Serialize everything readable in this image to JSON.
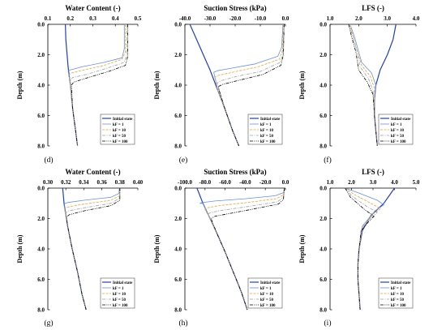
{
  "colors": {
    "initial": "#1f3fbf",
    "k1": "#6a8fd8",
    "k10": "#e8a33a",
    "k50": "#a0a0a0",
    "k100": "#000000"
  },
  "line_styles": {
    "initial": "solid",
    "k1": "solid",
    "k10": "dash",
    "k50": "dash-dot",
    "k100": "dash-dot-dot"
  },
  "chart_data": [
    {
      "id": "d",
      "type": "line",
      "panel_label": "(d)",
      "title": "Water Content (-)",
      "xlabel": "Water Content (-)",
      "ylabel": "Depth (m)",
      "xlim": [
        0.1,
        0.5
      ],
      "xticks": [
        "0.1",
        "0.2",
        "0.3",
        "0.4",
        "0.5"
      ],
      "ylim": [
        0,
        8
      ],
      "yticks": [
        "0.0",
        "2.0",
        "4.0",
        "6.0",
        "8.0"
      ],
      "y_inverted": true,
      "series": [
        {
          "name": "Initial state",
          "style": "initial",
          "x": [
            0.178,
            0.18,
            0.19,
            0.2,
            0.21,
            0.225,
            0.232
          ],
          "y": [
            0,
            1,
            2.8,
            4,
            5.5,
            7.2,
            8
          ]
        },
        {
          "name": "kF = 1",
          "style": "k1",
          "x": [
            0.44,
            0.44,
            0.43,
            0.35,
            0.25,
            0.2,
            0.19,
            0.2,
            0.21,
            0.225,
            0.232
          ],
          "y": [
            0,
            1.6,
            2.2,
            2.5,
            2.8,
            3,
            3.05,
            4,
            5.5,
            7.2,
            8
          ]
        },
        {
          "name": "kF = 10",
          "style": "k10",
          "x": [
            0.445,
            0.445,
            0.43,
            0.35,
            0.26,
            0.205,
            0.195,
            0.2,
            0.21,
            0.225,
            0.232
          ],
          "y": [
            0,
            1.8,
            2.3,
            2.7,
            3,
            3.2,
            3.3,
            4,
            5.5,
            7.2,
            8
          ]
        },
        {
          "name": "kF = 50",
          "style": "k50",
          "x": [
            0.45,
            0.45,
            0.44,
            0.36,
            0.27,
            0.21,
            0.2,
            0.21,
            0.225,
            0.232
          ],
          "y": [
            0,
            2,
            2.5,
            2.9,
            3.3,
            3.5,
            3.7,
            5.5,
            7.2,
            8
          ]
        },
        {
          "name": "kF = 100",
          "style": "k100",
          "x": [
            0.455,
            0.455,
            0.445,
            0.37,
            0.28,
            0.215,
            0.205,
            0.21,
            0.225,
            0.232
          ],
          "y": [
            0,
            2.1,
            2.7,
            3.1,
            3.5,
            3.8,
            4,
            5.5,
            7.2,
            8
          ]
        }
      ]
    },
    {
      "id": "e",
      "type": "line",
      "panel_label": "(e)",
      "title": "Suction Stress (kPa)",
      "xlabel": "Suction Stress (kPa)",
      "ylabel": "Depth (m)",
      "xlim": [
        -40,
        0
      ],
      "xticks": [
        "-40.0",
        "-30.0",
        "-20.0",
        "-10.0",
        "0.0"
      ],
      "ylim": [
        0,
        8
      ],
      "yticks": [
        "0.0",
        "2.0",
        "4.0",
        "6.0",
        "8.0"
      ],
      "y_inverted": true,
      "series": [
        {
          "name": "Initial state",
          "style": "initial",
          "x": [
            -38,
            -34,
            -30,
            -27,
            -24,
            -21,
            -18.5
          ],
          "y": [
            0,
            1.5,
            3,
            4.3,
            5.6,
            7,
            8
          ]
        },
        {
          "name": "kF = 1",
          "style": "k1",
          "x": [
            -1,
            -1.5,
            -3,
            -12,
            -22,
            -27,
            -28.5,
            -27,
            -24,
            -21,
            -18.5
          ],
          "y": [
            0,
            1.5,
            2.1,
            2.6,
            2.9,
            3.05,
            3.15,
            4.3,
            5.6,
            7,
            8
          ]
        },
        {
          "name": "kF = 10",
          "style": "k10",
          "x": [
            -0.8,
            -1.2,
            -2.5,
            -11,
            -21,
            -26.5,
            -28,
            -27,
            -24,
            -21,
            -18.5
          ],
          "y": [
            0,
            1.7,
            2.3,
            2.8,
            3.15,
            3.35,
            3.45,
            4.3,
            5.6,
            7,
            8
          ]
        },
        {
          "name": "kF = 50",
          "style": "k50",
          "x": [
            -0.6,
            -1,
            -2,
            -10,
            -20,
            -25.5,
            -27.2,
            -24,
            -21,
            -18.5
          ],
          "y": [
            0,
            1.9,
            2.5,
            3.1,
            3.45,
            3.7,
            3.85,
            5.6,
            7,
            8
          ]
        },
        {
          "name": "kF = 100",
          "style": "k100",
          "x": [
            -0.5,
            -0.8,
            -1.8,
            -9,
            -19,
            -25,
            -26.8,
            -24,
            -21,
            -18.5
          ],
          "y": [
            0,
            2,
            2.7,
            3.3,
            3.7,
            3.95,
            4.1,
            5.6,
            7,
            8
          ]
        }
      ]
    },
    {
      "id": "f",
      "type": "line",
      "panel_label": "(f)",
      "title": "LFS (-)",
      "xlabel": "LFS (-)",
      "ylabel": "Depth (m)",
      "xlim": [
        1,
        4
      ],
      "xticks": [
        "1.0",
        "2.0",
        "3.0",
        "4.0"
      ],
      "ylim": [
        0,
        8
      ],
      "yticks": [
        "0.0",
        "2.0",
        "4.0",
        "6.0",
        "8.0"
      ],
      "y_inverted": true,
      "series": [
        {
          "name": "Initial state",
          "style": "initial",
          "x": [
            3.3,
            3.2,
            3.0,
            2.75,
            2.6,
            2.55,
            2.55,
            2.6,
            2.65
          ],
          "y": [
            0,
            1,
            2,
            3,
            4,
            5,
            6,
            7,
            8
          ]
        },
        {
          "name": "kF = 1",
          "style": "k1",
          "x": [
            1.7,
            1.85,
            2.0,
            2.1,
            2.45,
            2.6,
            2.55,
            2.55,
            2.6,
            2.65
          ],
          "y": [
            0,
            0.8,
            1.8,
            2.5,
            3.2,
            4,
            5,
            6,
            7,
            8
          ]
        },
        {
          "name": "kF = 10",
          "style": "k10",
          "x": [
            1.7,
            1.8,
            1.95,
            2.1,
            2.4,
            2.55,
            2.55,
            2.6,
            2.65
          ],
          "y": [
            0,
            0.8,
            1.8,
            2.7,
            3.4,
            4.2,
            6,
            7,
            8
          ]
        },
        {
          "name": "kF = 50",
          "style": "k50",
          "x": [
            1.65,
            1.8,
            1.95,
            2.05,
            2.35,
            2.5,
            2.55,
            2.6,
            2.65
          ],
          "y": [
            0,
            0.8,
            1.8,
            2.8,
            3.6,
            4.4,
            6,
            7,
            8
          ]
        },
        {
          "name": "kF = 100",
          "style": "k100",
          "x": [
            1.65,
            1.75,
            1.9,
            2.0,
            2.3,
            2.5,
            2.55,
            2.6,
            2.65
          ],
          "y": [
            0,
            0.8,
            1.8,
            3,
            3.8,
            4.6,
            6,
            7,
            8
          ]
        }
      ]
    },
    {
      "id": "g",
      "type": "line",
      "panel_label": "(g)",
      "title": "Water Content (-)",
      "xlabel": "Water Content (-)",
      "ylabel": "Depth (m)",
      "xlim": [
        0.3,
        0.4
      ],
      "xticks": [
        "0.30",
        "0.32",
        "0.34",
        "0.36",
        "0.38",
        "0.40"
      ],
      "ylim": [
        0,
        8
      ],
      "yticks": [
        "0.0",
        "2.0",
        "4.0",
        "6.0",
        "8.0"
      ],
      "y_inverted": true,
      "series": [
        {
          "name": "Initial state",
          "style": "initial",
          "x": [
            0.3165,
            0.318,
            0.322,
            0.327,
            0.333,
            0.338,
            0.3425
          ],
          "y": [
            0,
            1,
            2.5,
            4,
            5.5,
            7,
            8
          ]
        },
        {
          "name": "kF = 1",
          "style": "k1",
          "x": [
            0.3795,
            0.379,
            0.37,
            0.34,
            0.322,
            0.3175,
            0.318,
            0.322,
            0.327,
            0.333,
            0.338,
            0.3425
          ],
          "y": [
            0,
            0.35,
            0.6,
            0.8,
            0.95,
            1.05,
            1.1,
            2.5,
            4,
            5.5,
            7,
            8
          ]
        },
        {
          "name": "kF = 10",
          "style": "k10",
          "x": [
            0.38,
            0.38,
            0.37,
            0.34,
            0.322,
            0.3185,
            0.322,
            0.327,
            0.333,
            0.338,
            0.3425
          ],
          "y": [
            0,
            0.5,
            0.8,
            1.05,
            1.25,
            1.35,
            2.5,
            4,
            5.5,
            7,
            8
          ]
        },
        {
          "name": "kF = 50",
          "style": "k50",
          "x": [
            0.38,
            0.38,
            0.37,
            0.34,
            0.323,
            0.3195,
            0.322,
            0.327,
            0.333,
            0.338,
            0.3425
          ],
          "y": [
            0,
            0.65,
            1.0,
            1.3,
            1.5,
            1.65,
            2.5,
            4,
            5.5,
            7,
            8
          ]
        },
        {
          "name": "kF = 100",
          "style": "k100",
          "x": [
            0.38,
            0.38,
            0.37,
            0.34,
            0.324,
            0.3205,
            0.322,
            0.327,
            0.333,
            0.338,
            0.3425
          ],
          "y": [
            0,
            0.8,
            1.15,
            1.5,
            1.75,
            1.9,
            2.5,
            4,
            5.5,
            7,
            8
          ]
        }
      ]
    },
    {
      "id": "h",
      "type": "line",
      "panel_label": "(h)",
      "title": "Suction Stress (kPa)",
      "xlabel": "Suction Stress (kPa)",
      "ylabel": "Depth (m)",
      "xlim": [
        -100,
        0
      ],
      "xticks": [
        "-100.0",
        "-80.0",
        "-60.0",
        "-40.0",
        "-20.0",
        "0.0"
      ],
      "ylim": [
        0,
        8
      ],
      "yticks": [
        "0.0",
        "2.0",
        "4.0",
        "6.0",
        "8.0"
      ],
      "y_inverted": true,
      "series": [
        {
          "name": "Initial state",
          "style": "initial",
          "x": [
            -88,
            -82,
            -75,
            -68,
            -60,
            -52,
            -44,
            -38
          ],
          "y": [
            0,
            1,
            2,
            3,
            4.2,
            5.5,
            6.8,
            8
          ]
        },
        {
          "name": "kF = 1",
          "style": "k1",
          "x": [
            -1,
            -2,
            -10,
            -40,
            -70,
            -83,
            -85,
            -82,
            -75,
            -68,
            -60,
            -52,
            -44,
            -38
          ],
          "y": [
            0,
            0.3,
            0.5,
            0.7,
            0.85,
            0.95,
            1.0,
            1,
            2,
            3,
            4.2,
            5.5,
            6.8,
            8
          ]
        },
        {
          "name": "kF = 10",
          "style": "k10",
          "x": [
            -1,
            -2,
            -9,
            -38,
            -66,
            -78,
            -80,
            -75,
            -68,
            -60,
            -52,
            -44,
            -38
          ],
          "y": [
            0,
            0.45,
            0.7,
            0.95,
            1.15,
            1.3,
            1.4,
            2,
            3,
            4.2,
            5.5,
            6.8,
            8
          ]
        },
        {
          "name": "kF = 50",
          "style": "k50",
          "x": [
            -1,
            -2,
            -8,
            -36,
            -62,
            -74,
            -77,
            -75,
            -68,
            -60,
            -52,
            -44,
            -38
          ],
          "y": [
            0,
            0.6,
            0.9,
            1.2,
            1.45,
            1.6,
            1.7,
            2,
            3,
            4.2,
            5.5,
            6.8,
            8
          ]
        },
        {
          "name": "kF = 100",
          "style": "k100",
          "x": [
            -1,
            -2,
            -7,
            -34,
            -58,
            -70,
            -74,
            -68,
            -60,
            -52,
            -44,
            -38
          ],
          "y": [
            0,
            0.75,
            1.05,
            1.4,
            1.7,
            1.85,
            2,
            3,
            4.2,
            5.5,
            6.8,
            8
          ]
        }
      ]
    },
    {
      "id": "i",
      "type": "line",
      "panel_label": "(i)",
      "title": "LFS (-)",
      "xlabel": "LFS (-)",
      "ylabel": "Depth (m)",
      "xlim": [
        1,
        5
      ],
      "xticks": [
        "1.0",
        "2.0",
        "3.0",
        "4.0",
        "5.0"
      ],
      "ylim": [
        0,
        8
      ],
      "yticks": [
        "0.0",
        "2.0",
        "4.0",
        "6.0",
        "8.0"
      ],
      "y_inverted": true,
      "series": [
        {
          "name": "Initial state",
          "style": "initial",
          "x": [
            4.0,
            3.5,
            2.9,
            2.5,
            2.35,
            2.3,
            2.3,
            2.35,
            2.4
          ],
          "y": [
            0,
            1,
            1.8,
            2.8,
            4,
            5,
            6,
            7,
            8
          ]
        },
        {
          "name": "kF = 1",
          "style": "k1",
          "x": [
            1.7,
            2.3,
            3.2,
            3.5,
            3.1,
            2.5,
            2.35,
            2.3,
            2.3,
            2.35,
            2.4
          ],
          "y": [
            0,
            0.3,
            0.8,
            1.1,
            1.5,
            2.5,
            4,
            5,
            6,
            7,
            8
          ]
        },
        {
          "name": "kF = 10",
          "style": "k10",
          "x": [
            1.7,
            2.1,
            2.9,
            3.35,
            3.0,
            2.5,
            2.35,
            2.3,
            2.3,
            2.35,
            2.4
          ],
          "y": [
            0,
            0.4,
            1.0,
            1.35,
            1.7,
            2.6,
            4,
            5,
            6,
            7,
            8
          ]
        },
        {
          "name": "kF = 50",
          "style": "k50",
          "x": [
            1.7,
            2.0,
            2.7,
            3.2,
            2.9,
            2.45,
            2.35,
            2.3,
            2.3,
            2.35,
            2.4
          ],
          "y": [
            0,
            0.5,
            1.2,
            1.6,
            1.95,
            2.7,
            4,
            5,
            6,
            7,
            8
          ]
        },
        {
          "name": "kF = 100",
          "style": "k100",
          "x": [
            1.7,
            1.95,
            2.6,
            3.05,
            2.8,
            2.45,
            2.35,
            2.3,
            2.3,
            2.35,
            2.4
          ],
          "y": [
            0,
            0.6,
            1.4,
            1.85,
            2.2,
            2.8,
            4,
            5,
            6,
            7,
            8
          ]
        }
      ]
    }
  ],
  "legend": {
    "entries": [
      "Initial state",
      "kF = 1",
      "kF = 10",
      "kF = 50",
      "kF = 100"
    ]
  }
}
